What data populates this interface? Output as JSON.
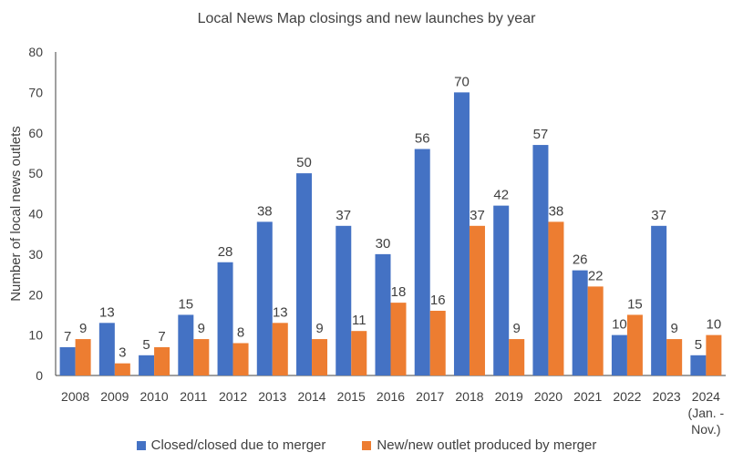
{
  "chart_data": {
    "type": "bar",
    "title": "Local News Map closings and new launches by year",
    "ylabel": "Number of local news outlets",
    "xlabel": "",
    "ylim": [
      0,
      80
    ],
    "yticks": [
      0,
      10,
      20,
      30,
      40,
      50,
      60,
      70,
      80
    ],
    "grid": false,
    "legend_position": "bottom",
    "categories": [
      {
        "label": "2008",
        "sub": []
      },
      {
        "label": "2009",
        "sub": []
      },
      {
        "label": "2010",
        "sub": []
      },
      {
        "label": "2011",
        "sub": []
      },
      {
        "label": "2012",
        "sub": []
      },
      {
        "label": "2013",
        "sub": []
      },
      {
        "label": "2014",
        "sub": []
      },
      {
        "label": "2015",
        "sub": []
      },
      {
        "label": "2016",
        "sub": []
      },
      {
        "label": "2017",
        "sub": []
      },
      {
        "label": "2018",
        "sub": []
      },
      {
        "label": "2019",
        "sub": []
      },
      {
        "label": "2020",
        "sub": []
      },
      {
        "label": "2021",
        "sub": []
      },
      {
        "label": "2022",
        "sub": []
      },
      {
        "label": "2023",
        "sub": []
      },
      {
        "label": "2024",
        "sub": [
          "(Jan. -",
          "Nov.)"
        ]
      }
    ],
    "series": [
      {
        "name": "Closed/closed due to merger",
        "color": "#4472C4",
        "values": [
          7,
          13,
          5,
          15,
          28,
          38,
          50,
          37,
          30,
          56,
          70,
          42,
          57,
          26,
          10,
          37,
          5
        ]
      },
      {
        "name": "New/new outlet produced by merger",
        "color": "#ED7D31",
        "values": [
          9,
          3,
          7,
          9,
          8,
          13,
          9,
          11,
          18,
          16,
          37,
          9,
          38,
          22,
          15,
          9,
          10
        ]
      }
    ]
  }
}
